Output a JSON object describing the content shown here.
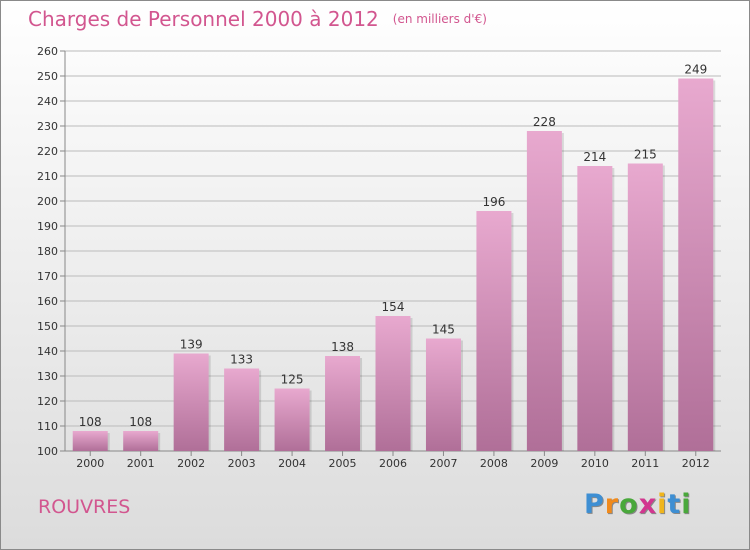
{
  "header": {
    "title": "Charges de Personnel 2000 à 2012",
    "subtitle": "(en milliers d'€)"
  },
  "footer": {
    "city": "ROUVRES",
    "logo_text": "Proxiti"
  },
  "colors": {
    "title": "#d2568f",
    "bar_top": "#e8a9cf",
    "bar_bottom": "#b06f98",
    "grid": "#bbbbbb"
  },
  "chart_data": {
    "type": "bar",
    "title": "Charges de Personnel 2000 à 2012",
    "subtitle": "(en milliers d'€)",
    "xlabel": "",
    "ylabel": "",
    "categories": [
      "2000",
      "2001",
      "2002",
      "2003",
      "2004",
      "2005",
      "2006",
      "2007",
      "2008",
      "2009",
      "2010",
      "2011",
      "2012"
    ],
    "values": [
      108,
      108,
      139,
      133,
      125,
      138,
      154,
      145,
      196,
      228,
      214,
      215,
      249
    ],
    "ylim": [
      100,
      260
    ],
    "yticks": [
      100,
      110,
      120,
      130,
      140,
      150,
      160,
      170,
      180,
      190,
      200,
      210,
      220,
      230,
      240,
      250,
      260
    ],
    "grid": true,
    "data_labels": true
  }
}
